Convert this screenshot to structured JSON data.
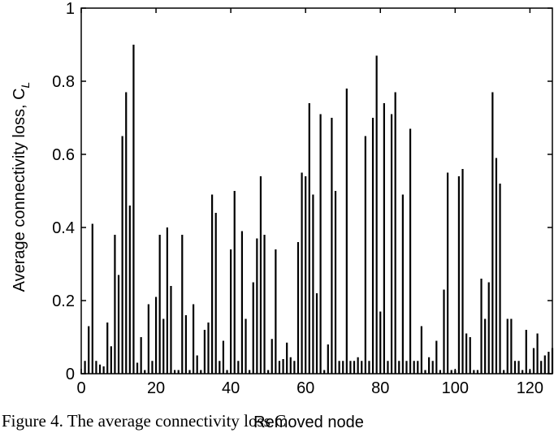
{
  "caption": "Figure 4. The average connectivity loss C",
  "chart_data": {
    "type": "bar",
    "xlabel": "Removed node",
    "ylabel": "Average connectivity loss, C",
    "ylabel_subscript": "L",
    "xlim": [
      0,
      126
    ],
    "ylim": [
      0,
      1
    ],
    "xticks": [
      "0",
      "20",
      "40",
      "60",
      "80",
      "100",
      "120"
    ],
    "yticks": [
      "0",
      "0.2",
      "0.4",
      "0.6",
      "0.8",
      "1"
    ],
    "grid": false,
    "x": [
      1,
      2,
      3,
      4,
      5,
      6,
      7,
      8,
      9,
      10,
      11,
      12,
      13,
      14,
      15,
      16,
      17,
      18,
      19,
      20,
      21,
      22,
      23,
      24,
      25,
      26,
      27,
      28,
      29,
      30,
      31,
      32,
      33,
      34,
      35,
      36,
      37,
      38,
      39,
      40,
      41,
      42,
      43,
      44,
      45,
      46,
      47,
      48,
      49,
      50,
      51,
      52,
      53,
      54,
      55,
      56,
      57,
      58,
      59,
      60,
      61,
      62,
      63,
      64,
      65,
      66,
      67,
      68,
      69,
      70,
      71,
      72,
      73,
      74,
      75,
      76,
      77,
      78,
      79,
      80,
      81,
      82,
      83,
      84,
      85,
      86,
      87,
      88,
      89,
      90,
      91,
      92,
      93,
      94,
      95,
      96,
      97,
      98,
      99,
      100,
      101,
      102,
      103,
      104,
      105,
      106,
      107,
      108,
      109,
      110,
      111,
      112,
      113,
      114,
      115,
      116,
      117,
      118,
      119,
      120,
      121,
      122,
      123,
      124,
      125,
      126
    ],
    "values": [
      0.035,
      0.13,
      0.41,
      0.035,
      0.025,
      0.02,
      0.14,
      0.075,
      0.38,
      0.27,
      0.65,
      0.77,
      0.46,
      0.9,
      0.03,
      0.1,
      0.01,
      0.19,
      0.035,
      0.21,
      0.38,
      0.15,
      0.4,
      0.24,
      0.01,
      0.01,
      0.38,
      0.16,
      0.01,
      0.19,
      0.05,
      0.01,
      0.12,
      0.14,
      0.49,
      0.44,
      0.035,
      0.09,
      0.01,
      0.34,
      0.5,
      0.035,
      0.39,
      0.15,
      0.01,
      0.25,
      0.37,
      0.54,
      0.38,
      0.01,
      0.095,
      0.34,
      0.035,
      0.04,
      0.085,
      0.045,
      0.035,
      0.36,
      0.55,
      0.54,
      0.74,
      0.49,
      0.22,
      0.71,
      0.01,
      0.08,
      0.7,
      0.5,
      0.035,
      0.035,
      0.78,
      0.035,
      0.035,
      0.045,
      0.035,
      0.65,
      0.035,
      0.7,
      0.87,
      0.17,
      0.74,
      0.035,
      0.71,
      0.77,
      0.035,
      0.49,
      0.035,
      0.67,
      0.035,
      0.035,
      0.13,
      0.01,
      0.045,
      0.035,
      0.09,
      0.01,
      0.23,
      0.55,
      0.01,
      0.01,
      0.54,
      0.56,
      0.11,
      0.1,
      0.01,
      0.01,
      0.26,
      0.15,
      0.25,
      0.77,
      0.59,
      0.52,
      0.01,
      0.15,
      0.15,
      0.035,
      0.035,
      0.01,
      0.12,
      0.01,
      0.07,
      0.11,
      0.035,
      0.05,
      0.06,
      0.07
    ]
  }
}
